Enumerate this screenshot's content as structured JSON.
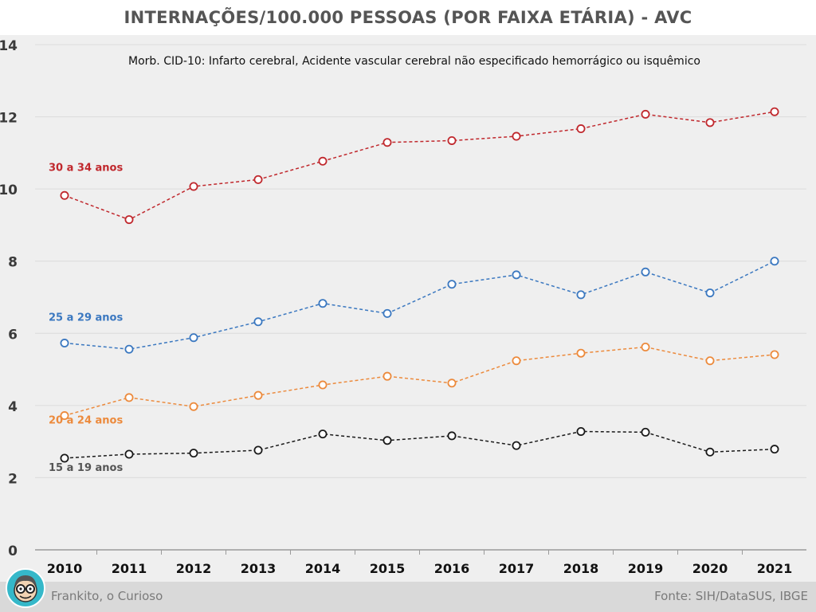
{
  "title": "INTERNAÇÕES/100.000 PESSOAS (POR FAIXA ETÁRIA) - AVC",
  "footer": {
    "credit": "Frankito, o Curioso",
    "source": "Fonte: SIH/DataSUS, IBGE"
  },
  "icons": {
    "mascot": "mascot-avatar-icon"
  },
  "chart_data": {
    "type": "line",
    "title": "INTERNAÇÕES/100.000 PESSOAS (POR FAIXA ETÁRIA) - AVC",
    "subtitle": "Morb.  CID-10: Infarto cerebral, Acidente vascular cerebral não especificado hemorrágico ou isquêmico",
    "xlabel": "",
    "ylabel": "",
    "x": [
      "2010",
      "2011",
      "2012",
      "2013",
      "2014",
      "2015",
      "2016",
      "2017",
      "2018",
      "2019",
      "2020",
      "2021"
    ],
    "ylim": [
      0,
      14
    ],
    "yticks": [
      "0",
      "2",
      "4",
      "6",
      "8",
      "10",
      "12",
      "14"
    ],
    "grid": true,
    "legend": "inline labels at left of each series",
    "series": [
      {
        "name": "30 a 34 anos",
        "color": "#c0282d",
        "values": [
          9.82,
          9.15,
          10.07,
          10.26,
          10.77,
          11.29,
          11.34,
          11.46,
          11.67,
          12.07,
          11.84,
          12.14
        ]
      },
      {
        "name": "25 a 29 anos",
        "color": "#3b78c0",
        "values": [
          5.73,
          5.56,
          5.88,
          6.32,
          6.83,
          6.55,
          7.36,
          7.62,
          7.07,
          7.7,
          7.12,
          8.0
        ]
      },
      {
        "name": "20 a 24 anos",
        "color": "#ec8a3c",
        "values": [
          3.72,
          4.22,
          3.97,
          4.28,
          4.57,
          4.81,
          4.62,
          5.24,
          5.45,
          5.62,
          5.24,
          5.41
        ]
      },
      {
        "name": "15 a 19 anos",
        "color": "#1a1a1a",
        "values": [
          2.54,
          2.65,
          2.68,
          2.76,
          3.21,
          3.03,
          3.16,
          2.89,
          3.28,
          3.26,
          2.71,
          2.79
        ]
      }
    ]
  }
}
